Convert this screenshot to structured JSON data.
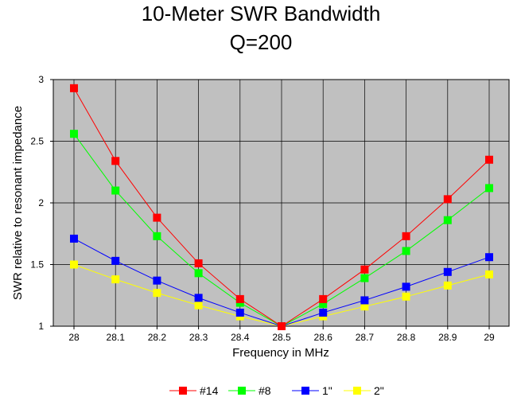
{
  "chart_data": {
    "type": "line",
    "title": "10-Meter SWR Bandwidth",
    "subtitle": "Q=200",
    "xlabel": "Frequency in MHz",
    "ylabel": "SWR relative to resonant impedance",
    "x": [
      28,
      28.1,
      28.2,
      28.3,
      28.4,
      28.5,
      28.6,
      28.7,
      28.8,
      28.9,
      29
    ],
    "x_tick_labels": [
      "28",
      "28.1",
      "28.2",
      "28.3",
      "28.4",
      "28.5",
      "28.6",
      "28.7",
      "28.8",
      "28.9",
      "29"
    ],
    "y_tick_values": [
      1,
      1.5,
      2,
      2.5,
      3
    ],
    "y_tick_labels": [
      "1",
      "1.5",
      "2",
      "2.5",
      "3"
    ],
    "ylim": [
      1,
      3
    ],
    "grid": true,
    "legend_position": "bottom",
    "series": [
      {
        "name": "#14",
        "color": "#ff0000",
        "values": [
          2.93,
          2.34,
          1.88,
          1.51,
          1.22,
          1.0,
          1.22,
          1.46,
          1.73,
          2.03,
          2.35
        ]
      },
      {
        "name": "#8",
        "color": "#00ff00",
        "values": [
          2.56,
          2.1,
          1.73,
          1.43,
          1.19,
          1.0,
          1.18,
          1.39,
          1.61,
          1.86,
          2.12
        ]
      },
      {
        "name": "1\"",
        "color": "#0000ff",
        "values": [
          1.71,
          1.53,
          1.37,
          1.23,
          1.11,
          1.0,
          1.11,
          1.21,
          1.32,
          1.44,
          1.56
        ]
      },
      {
        "name": "2\"",
        "color": "#ffff00",
        "values": [
          1.5,
          1.38,
          1.27,
          1.17,
          1.08,
          1.0,
          1.08,
          1.16,
          1.24,
          1.33,
          1.42
        ]
      }
    ]
  }
}
